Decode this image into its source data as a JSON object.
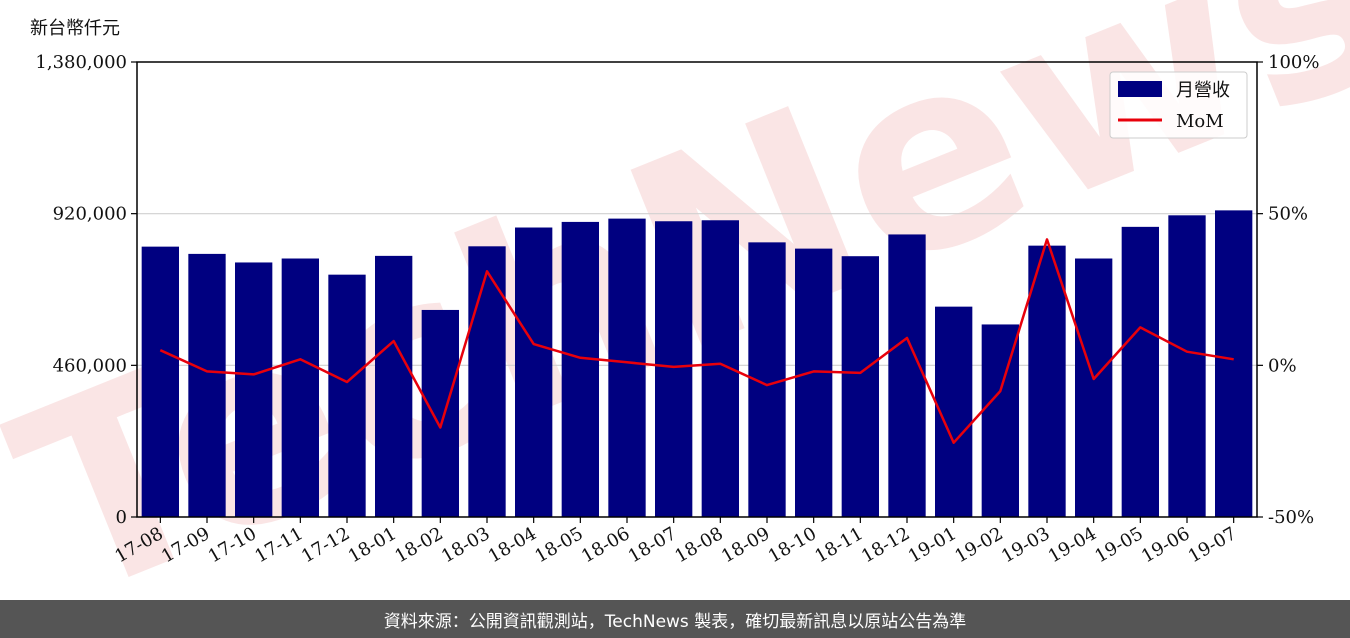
{
  "unit_label": "新台幣仟元",
  "footer_text": "資料來源：公開資訊觀測站，TechNews 製表，確切最新訊息以原站公告為準",
  "watermark_text": "TechNews",
  "colors": {
    "bar": "#000080",
    "line": "#e8000b",
    "grid": "#d0d0d0",
    "footer_bg": "#555555",
    "watermark": "#f3c6c6"
  },
  "chart_data": {
    "type": "bar",
    "categories": [
      "17-08",
      "17-09",
      "17-10",
      "17-11",
      "17-12",
      "18-01",
      "18-02",
      "18-03",
      "18-04",
      "18-05",
      "18-06",
      "18-07",
      "18-08",
      "18-09",
      "18-10",
      "18-11",
      "18-12",
      "19-01",
      "19-02",
      "19-03",
      "19-04",
      "19-05",
      "19-06",
      "19-07"
    ],
    "series": [
      {
        "name": "月營收",
        "type": "bar",
        "axis": "left",
        "values": [
          820000,
          798000,
          772000,
          784000,
          735000,
          792000,
          628000,
          821000,
          878000,
          895000,
          905000,
          897000,
          900000,
          833000,
          814000,
          791000,
          857000,
          638000,
          584000,
          823000,
          784000,
          880000,
          915000,
          930000
        ]
      },
      {
        "name": "MoM",
        "type": "line",
        "axis": "right",
        "values": [
          5,
          -2,
          -3,
          2,
          -5.5,
          8,
          -20.5,
          31,
          7,
          2.5,
          1,
          -0.5,
          0.5,
          -6.5,
          -2,
          -2.5,
          9,
          -25.5,
          -8.5,
          41.5,
          -4.5,
          12.5,
          4.5,
          2
        ]
      }
    ],
    "y_left": {
      "ticks": [
        "0",
        "460,000",
        "920,000",
        "1,380,000"
      ],
      "lim": [
        0,
        1380000
      ]
    },
    "y_right": {
      "ticks": [
        "-50%",
        "0%",
        "50%",
        "100%"
      ],
      "lim": [
        -50,
        100
      ]
    },
    "grid": "horizontal",
    "legend": "top-right"
  }
}
